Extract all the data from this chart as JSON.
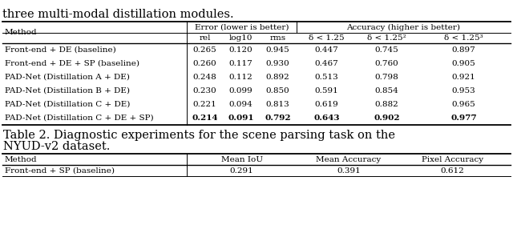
{
  "title_top": "three multi-modal distillation modules.",
  "col1_header": "Method",
  "error_group_label": "Error (lower is better)",
  "accuracy_group_label": "Accuracy (higher is better)",
  "col_labels": [
    "rel",
    "log10",
    "rms",
    "δ < 1.25",
    "δ < 1.25²",
    "δ < 1.25³"
  ],
  "rows": [
    {
      "method": "Front-end + DE (baseline)",
      "values": [
        "0.265",
        "0.120",
        "0.945",
        "0.447",
        "0.745",
        "0.897"
      ],
      "bold": [
        false,
        false,
        false,
        false,
        false,
        false
      ]
    },
    {
      "method": "Front-end + DE + SP (baseline)",
      "values": [
        "0.260",
        "0.117",
        "0.930",
        "0.467",
        "0.760",
        "0.905"
      ],
      "bold": [
        false,
        false,
        false,
        false,
        false,
        false
      ]
    },
    {
      "method": "PAD-Net (Distillation A + DE)",
      "values": [
        "0.248",
        "0.112",
        "0.892",
        "0.513",
        "0.798",
        "0.921"
      ],
      "bold": [
        false,
        false,
        false,
        false,
        false,
        false
      ]
    },
    {
      "method": "PAD-Net (Distillation B + DE)",
      "values": [
        "0.230",
        "0.099",
        "0.850",
        "0.591",
        "0.854",
        "0.953"
      ],
      "bold": [
        false,
        false,
        false,
        false,
        false,
        false
      ]
    },
    {
      "method": "PAD-Net (Distillation C + DE)",
      "values": [
        "0.221",
        "0.094",
        "0.813",
        "0.619",
        "0.882",
        "0.965"
      ],
      "bold": [
        false,
        false,
        false,
        false,
        false,
        false
      ]
    },
    {
      "method": "PAD-Net (Distillation C + DE + SP)",
      "values": [
        "0.214",
        "0.091",
        "0.792",
        "0.643",
        "0.902",
        "0.977"
      ],
      "bold": [
        true,
        true,
        true,
        true,
        true,
        true
      ]
    }
  ],
  "table2_caption_line1": "Table 2. Diagnostic experiments for the scene parsing task on the",
  "table2_caption_line2": "NYUD-v2 dataset.",
  "table2_col1_header": "Method",
  "table2_col_headers": [
    "Mean IoU",
    "Mean Accuracy",
    "Pixel Accuracy"
  ],
  "table2_rows": [
    {
      "method": "Front-end + SP (baseline)",
      "values": [
        "0.291",
        "0.391",
        "0.612"
      ]
    }
  ],
  "background_color": "#ffffff",
  "text_color": "#000000",
  "line_color": "#000000",
  "font_size": 7.5,
  "title_font_size": 10.5,
  "caption_font_size": 10.5
}
